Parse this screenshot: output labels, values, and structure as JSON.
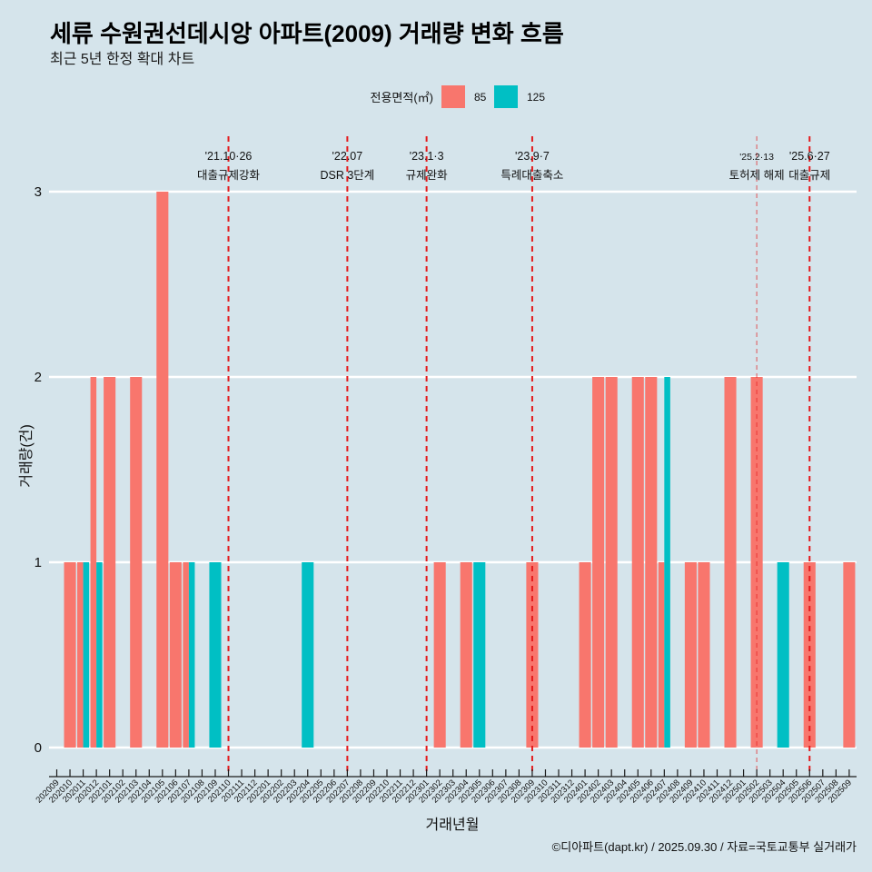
{
  "chart_data": {
    "type": "bar",
    "title": "세류 수원권선데시앙 아파트(2009) 거래량 변화 흐름",
    "subtitle": "최근 5년 한정 확대 차트",
    "xlabel": "거래년월",
    "ylabel": "거래량(건)",
    "caption": "©디아파트(dapt.kr) / 2025.09.30 / 자료=국토교통부 실거래가",
    "legend_title": "전용면적(㎡)",
    "legend_position": "top",
    "grid": "horizontal",
    "ylim": [
      0,
      3
    ],
    "yticks": [
      0,
      1,
      2,
      3
    ],
    "categories": [
      "202009",
      "202010",
      "202011",
      "202012",
      "202101",
      "202102",
      "202103",
      "202104",
      "202105",
      "202106",
      "202107",
      "202108",
      "202109",
      "202110",
      "202111",
      "202112",
      "202201",
      "202202",
      "202203",
      "202204",
      "202205",
      "202206",
      "202207",
      "202208",
      "202209",
      "202210",
      "202211",
      "202212",
      "202301",
      "202302",
      "202303",
      "202304",
      "202305",
      "202306",
      "202307",
      "202308",
      "202309",
      "202310",
      "202311",
      "202312",
      "202401",
      "202402",
      "202403",
      "202404",
      "202405",
      "202406",
      "202407",
      "202408",
      "202409",
      "202410",
      "202411",
      "202412",
      "202501",
      "202502",
      "202503",
      "202504",
      "202505",
      "202506",
      "202507",
      "202508",
      "202509"
    ],
    "series": [
      {
        "name": "85",
        "color": "#F8766D",
        "values": [
          0,
          1,
          1,
          2,
          2,
          0,
          2,
          0,
          3,
          1,
          1,
          0,
          0,
          0,
          0,
          0,
          0,
          0,
          0,
          0,
          0,
          0,
          0,
          0,
          0,
          0,
          0,
          0,
          0,
          1,
          0,
          1,
          0,
          0,
          0,
          0,
          1,
          0,
          0,
          0,
          1,
          2,
          2,
          0,
          2,
          2,
          1,
          0,
          1,
          1,
          0,
          2,
          0,
          2,
          0,
          0,
          0,
          1,
          0,
          0,
          1
        ]
      },
      {
        "name": "125",
        "color": "#00BFC4",
        "values": [
          0,
          0,
          1,
          1,
          0,
          0,
          0,
          0,
          0,
          0,
          1,
          0,
          1,
          0,
          0,
          0,
          0,
          0,
          0,
          1,
          0,
          0,
          0,
          0,
          0,
          0,
          0,
          0,
          0,
          0,
          0,
          0,
          1,
          0,
          0,
          0,
          0,
          0,
          0,
          0,
          0,
          0,
          0,
          0,
          0,
          0,
          2,
          0,
          0,
          0,
          0,
          0,
          0,
          0,
          0,
          1,
          0,
          0,
          0,
          0,
          0
        ]
      }
    ],
    "annotations": [
      {
        "x": "202110",
        "date": "'21.10·26",
        "label": "대출규제강화",
        "minor": false
      },
      {
        "x": "202207",
        "date": "'22.07",
        "label": "DSR 3단계",
        "minor": false
      },
      {
        "x": "202301",
        "date": "'23.1·3",
        "label": "규제완화",
        "minor": false
      },
      {
        "x": "202309",
        "date": "'23.9·7",
        "label": "특례대출축소",
        "minor": false
      },
      {
        "x": "202502",
        "date": "'25.2·13",
        "label": "토허제 해제",
        "minor": true
      },
      {
        "x": "202506",
        "date": "'25.6·27",
        "label": "대출규제",
        "minor": false
      }
    ],
    "vline_color": "#e41a1c"
  }
}
